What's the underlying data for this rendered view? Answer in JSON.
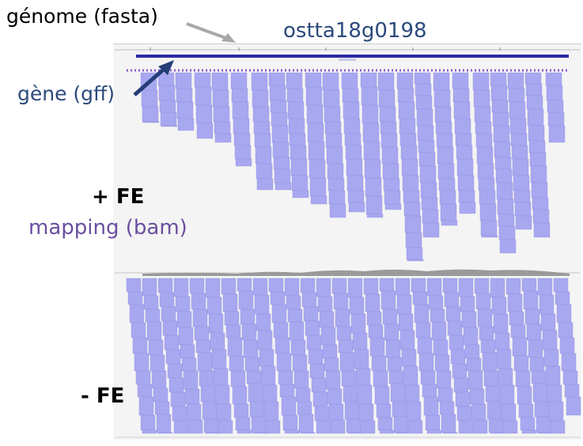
{
  "annotations": {
    "genome_label": "génome (fasta)",
    "gene_name": "ostta18g0198",
    "gene_track_label": "gène (gff)",
    "plus_fe_label": "+ FE",
    "mapping_label": "mapping (bam)",
    "minus_fe_label": "- FE"
  },
  "colors": {
    "read": "#a8a8f0",
    "read_edge": "#8f8fe0",
    "gene": "#2a2aa5",
    "coverage": "#9a9a9a",
    "arrow_gray": "#a8a8a8",
    "arrow_blue": "#243d77",
    "label_blue": "#2c4a7c",
    "label_purple": "#6b4fa0"
  },
  "tracks": [
    "genome-ruler",
    "gene-annotation",
    "plus-fe-alignments",
    "coverage",
    "minus-fe-alignments"
  ]
}
